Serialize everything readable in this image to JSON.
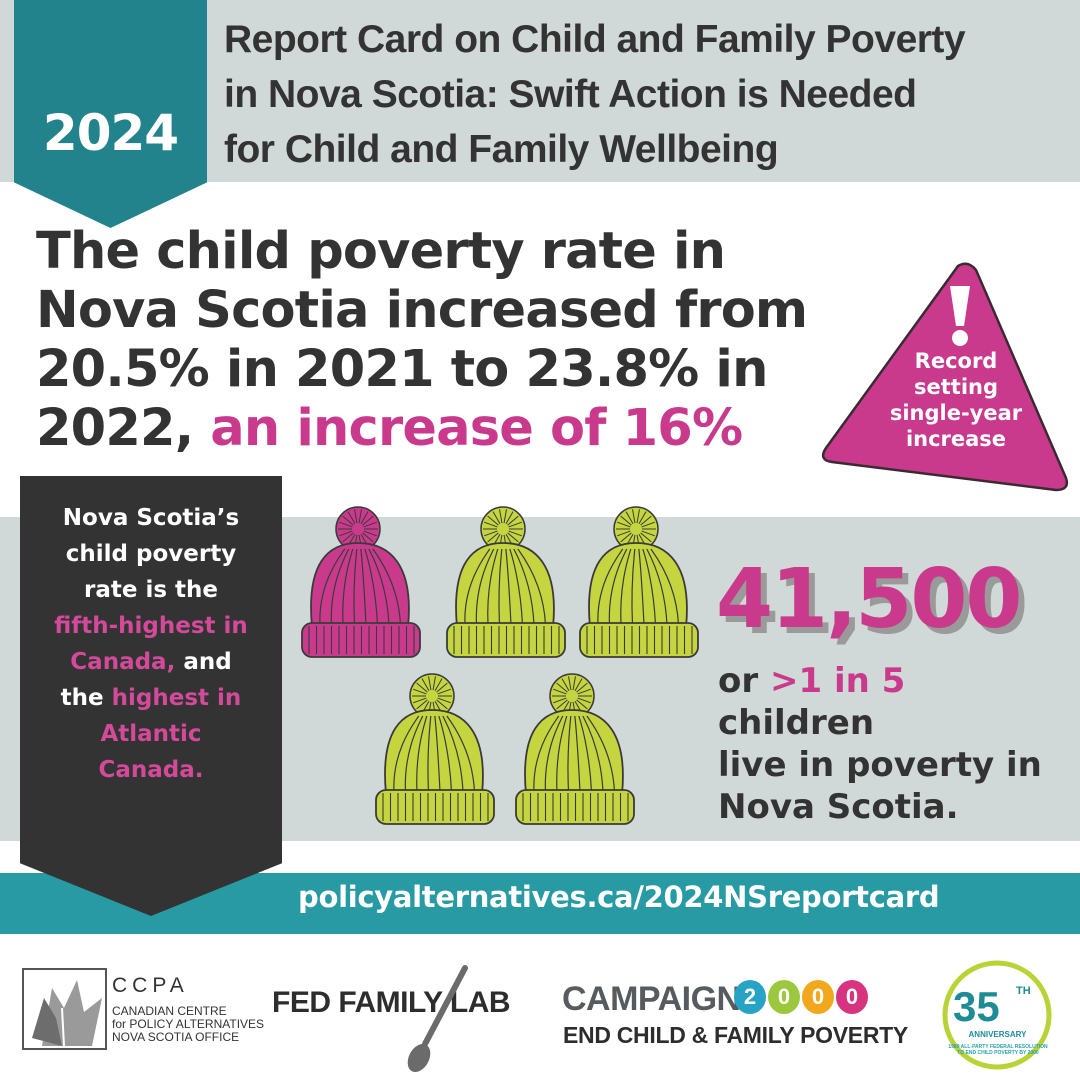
{
  "header": {
    "year": "2024",
    "title_lines": [
      "Report Card on Child and Family Poverty",
      "in Nova Scotia: Swift Action is Needed",
      "for Child and Family Wellbeing"
    ]
  },
  "headline": {
    "line1": "The child poverty rate in",
    "line2": "Nova Scotia increased from",
    "line3": "20.5% in 2021 to 23.8% in",
    "line4_plain": "2022, ",
    "line4_accent": "an increase of 16%"
  },
  "warning": {
    "lines": [
      "Record",
      "setting",
      "single-year",
      "increase"
    ]
  },
  "callout": {
    "l1": "Nova Scotia’s",
    "l2": "child poverty",
    "l3": "rate is the",
    "l4_accent": "fifth-highest in",
    "l5_accent": "Canada,",
    "l5_plain": " and",
    "l6_plain": "the ",
    "l6_accent": "highest in",
    "l7_accent": "Atlantic",
    "l8_accent": "Canada."
  },
  "stat": {
    "number": "41,500",
    "l1_plain": "or ",
    "l1_accent": ">1 in 5",
    "l1_rest": " children",
    "l2": "live in poverty in",
    "l3": "Nova Scotia."
  },
  "footer": {
    "url": "policyalternatives.ca/2024NSreportcard",
    "ccpa_name": "CCPA",
    "ccpa_sub1": "CANADIAN CENTRE",
    "ccpa_sub2": "for POLICY ALTERNATIVES",
    "ccpa_sub3": "NOVA SCOTIA OFFICE",
    "fed_lab": "FED FAMILY LAB",
    "campaign": "CAMPAIGN",
    "campaign_digits": [
      "2",
      "0",
      "0",
      "0"
    ],
    "campaign_tagline": "END CHILD & FAMILY POVERTY",
    "anniv_number": "35",
    "anniv_th": "TH",
    "anniv_label": "ANNIVERSARY",
    "anniv_small": "1989 ALL-PARTY FEDERAL RESOLUTION TO END CHILD POVERTY BY 2000"
  },
  "colors": {
    "teal": "#23838d",
    "magenta": "#c93a8c",
    "lime": "#c5d53f",
    "dark": "#333333",
    "grey_band": "#d1d8d8"
  },
  "hats": [
    {
      "color": "magenta"
    },
    {
      "color": "lime"
    },
    {
      "color": "lime"
    },
    {
      "color": "lime"
    },
    {
      "color": "lime"
    }
  ]
}
